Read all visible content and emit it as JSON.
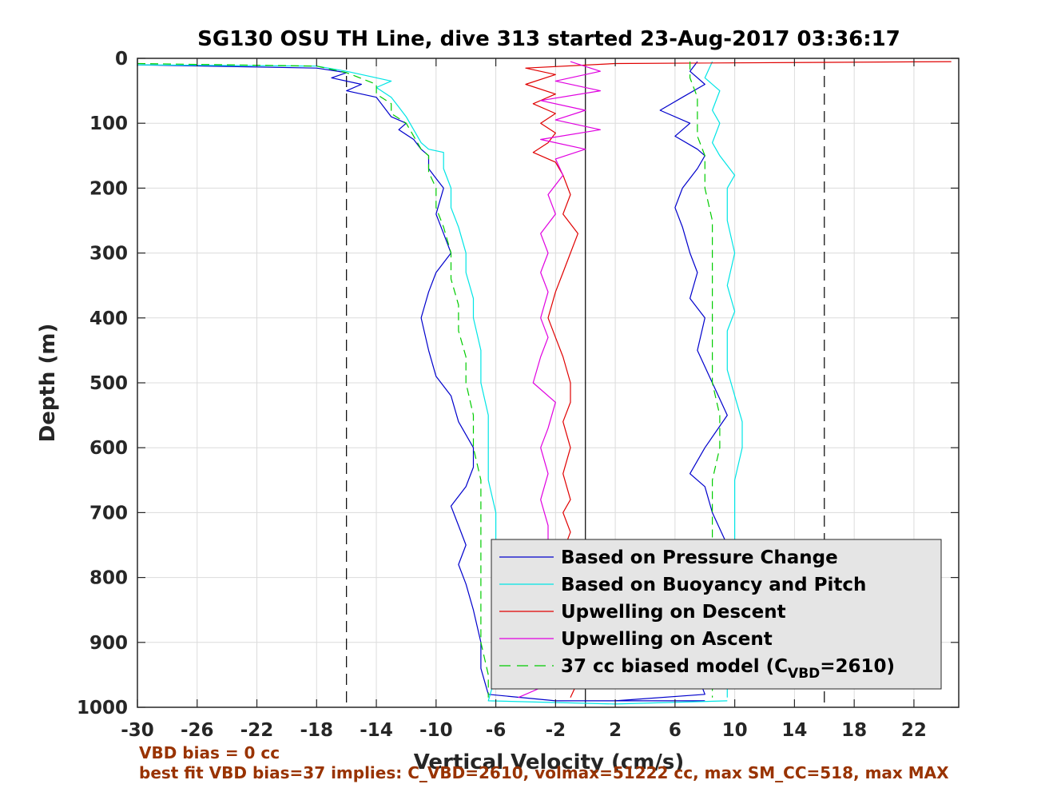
{
  "colors": {
    "pressure": "#0000cc",
    "buoyancy": "#00e5e5",
    "descent": "#e00000",
    "ascent": "#e000e0",
    "model": "#00cc00",
    "footnote": "#993300",
    "legend_bg": "#e5e5e5"
  },
  "footnotes": [
    "VBD bias = 0 cc",
    "best fit VBD bias=37 implies: C_VBD=2610, volmax=51222 cc, max SM_CC=518, max MAX"
  ],
  "chart_data": {
    "type": "line",
    "title": "SG130 OSU TH Line, dive 313 started 23-Aug-2017 03:36:17",
    "xlabel": "Vertical Velocity (cm/s)",
    "ylabel": "Depth (m)",
    "xlim": [
      -30,
      25
    ],
    "ylim": [
      0,
      1000
    ],
    "y_reversed": true,
    "grid": true,
    "xticks": [
      -30,
      -26,
      -22,
      -18,
      -14,
      -10,
      -6,
      -2,
      2,
      6,
      10,
      14,
      18,
      22
    ],
    "yticks": [
      0,
      100,
      200,
      300,
      400,
      500,
      600,
      700,
      800,
      900,
      1000
    ],
    "reference_lines": [
      {
        "x": -16,
        "style": "dashed"
      },
      {
        "x": 0,
        "style": "solid"
      },
      {
        "x": 16,
        "style": "dashed"
      }
    ],
    "legend_position": "bottom-right",
    "series": [
      {
        "name": "Based on Pressure Change",
        "key": "pressure",
        "style": "solid",
        "segments": [
          [
            [
              -30,
              10
            ],
            [
              -18,
              15
            ],
            [
              -16,
              22
            ],
            [
              -17,
              30
            ],
            [
              -15,
              40
            ],
            [
              -16,
              50
            ],
            [
              -14,
              60
            ],
            [
              -13.5,
              75
            ],
            [
              -13,
              90
            ],
            [
              -12,
              100
            ],
            [
              -12.5,
              110
            ],
            [
              -11.5,
              125
            ],
            [
              -11,
              140
            ],
            [
              -10.5,
              150
            ],
            [
              -10.5,
              170
            ],
            [
              -10,
              185
            ],
            [
              -9.5,
              200
            ],
            [
              -10,
              240
            ],
            [
              -9.5,
              270
            ],
            [
              -9,
              300
            ],
            [
              -10,
              330
            ],
            [
              -10.5,
              360
            ],
            [
              -11,
              400
            ],
            [
              -10.5,
              450
            ],
            [
              -10,
              490
            ],
            [
              -9,
              520
            ],
            [
              -8.5,
              560
            ],
            [
              -7.5,
              600
            ],
            [
              -7.5,
              630
            ],
            [
              -8,
              660
            ],
            [
              -9,
              690
            ],
            [
              -8.5,
              720
            ],
            [
              -8,
              750
            ],
            [
              -8.5,
              780
            ],
            [
              -8,
              810
            ],
            [
              -7.5,
              850
            ],
            [
              -7,
              900
            ],
            [
              -7,
              940
            ],
            [
              -6.5,
              980
            ],
            [
              -2,
              990
            ],
            [
              8,
              990
            ]
          ],
          [
            [
              7.5,
              5
            ],
            [
              7,
              20
            ],
            [
              8,
              40
            ],
            [
              6.5,
              60
            ],
            [
              5,
              80
            ],
            [
              7,
              100
            ],
            [
              6,
              120
            ],
            [
              7.5,
              140
            ],
            [
              8,
              150
            ],
            [
              7.5,
              170
            ],
            [
              6.5,
              200
            ],
            [
              6,
              230
            ],
            [
              6.5,
              260
            ],
            [
              7,
              300
            ],
            [
              7.5,
              330
            ],
            [
              7,
              370
            ],
            [
              8,
              400
            ],
            [
              7.5,
              450
            ],
            [
              8.5,
              500
            ],
            [
              9.5,
              550
            ],
            [
              8,
              600
            ],
            [
              7,
              640
            ],
            [
              8,
              660
            ],
            [
              8.5,
              700
            ],
            [
              9.5,
              750
            ],
            [
              8.5,
              800
            ],
            [
              8,
              850
            ],
            [
              8,
              900
            ],
            [
              7.5,
              950
            ],
            [
              8,
              980
            ],
            [
              2,
              990
            ]
          ]
        ]
      },
      {
        "name": "Based on Buoyancy and Pitch",
        "key": "buoyancy",
        "style": "solid",
        "segments": [
          [
            [
              -30,
              10
            ],
            [
              -18,
              12
            ],
            [
              -16,
              20
            ],
            [
              -13,
              35
            ],
            [
              -14,
              45
            ],
            [
              -13,
              60
            ],
            [
              -12.5,
              75
            ],
            [
              -12,
              90
            ],
            [
              -11.5,
              110
            ],
            [
              -11,
              130
            ],
            [
              -10.5,
              140
            ],
            [
              -9.5,
              145
            ],
            [
              -9.5,
              170
            ],
            [
              -9,
              200
            ],
            [
              -9,
              230
            ],
            [
              -8.5,
              260
            ],
            [
              -8,
              300
            ],
            [
              -8,
              330
            ],
            [
              -7.5,
              370
            ],
            [
              -7.5,
              400
            ],
            [
              -7,
              450
            ],
            [
              -7,
              500
            ],
            [
              -6.5,
              550
            ],
            [
              -6.5,
              600
            ],
            [
              -6.5,
              650
            ],
            [
              -6,
              700
            ],
            [
              -6,
              750
            ],
            [
              -6,
              800
            ],
            [
              -6,
              850
            ],
            [
              -6,
              900
            ],
            [
              -6,
              950
            ],
            [
              -6.5,
              990
            ],
            [
              2,
              995
            ],
            [
              9.5,
              990
            ]
          ],
          [
            [
              8.5,
              5
            ],
            [
              8,
              30
            ],
            [
              9,
              50
            ],
            [
              8.5,
              80
            ],
            [
              9,
              100
            ],
            [
              8.5,
              130
            ],
            [
              9,
              150
            ],
            [
              10,
              180
            ],
            [
              9.5,
              200
            ],
            [
              9.5,
              250
            ],
            [
              10,
              300
            ],
            [
              9.5,
              350
            ],
            [
              10,
              390
            ],
            [
              9.5,
              420
            ],
            [
              9.5,
              480
            ],
            [
              10,
              520
            ],
            [
              10.5,
              560
            ],
            [
              10.5,
              600
            ],
            [
              10,
              650
            ],
            [
              10,
              700
            ],
            [
              10,
              750
            ],
            [
              10,
              800
            ],
            [
              9.5,
              850
            ],
            [
              9.5,
              900
            ],
            [
              9.5,
              950
            ],
            [
              9.5,
              985
            ]
          ]
        ]
      },
      {
        "name": "Upwelling on Descent",
        "key": "descent",
        "style": "solid",
        "segments": [
          [
            [
              24.5,
              5
            ],
            [
              2,
              8
            ],
            [
              -4,
              15
            ],
            [
              -2,
              25
            ],
            [
              -4,
              40
            ],
            [
              -2,
              55
            ],
            [
              -3.5,
              70
            ],
            [
              -2,
              85
            ],
            [
              -3,
              100
            ],
            [
              -2,
              115
            ],
            [
              -2.5,
              130
            ],
            [
              -3.5,
              145
            ],
            [
              -2,
              160
            ],
            [
              -1.5,
              180
            ],
            [
              -1,
              210
            ],
            [
              -1.5,
              240
            ],
            [
              -0.5,
              270
            ],
            [
              -1,
              300
            ],
            [
              -1.5,
              330
            ],
            [
              -2,
              360
            ],
            [
              -2.5,
              400
            ],
            [
              -2,
              430
            ],
            [
              -1.5,
              460
            ],
            [
              -1,
              500
            ],
            [
              -1,
              530
            ],
            [
              -1.5,
              560
            ],
            [
              -1,
              600
            ],
            [
              -1.5,
              640
            ],
            [
              -1,
              680
            ],
            [
              -1.5,
              700
            ],
            [
              -1,
              730
            ],
            [
              -1.5,
              760
            ],
            [
              -1,
              790
            ],
            [
              -0.5,
              820
            ],
            [
              -1,
              850
            ],
            [
              -0.5,
              880
            ],
            [
              -1,
              920
            ],
            [
              -0.5,
              960
            ],
            [
              -1,
              985
            ]
          ]
        ]
      },
      {
        "name": "Upwelling on Ascent",
        "key": "ascent",
        "style": "solid",
        "segments": [
          [
            [
              -1,
              5
            ],
            [
              1,
              20
            ],
            [
              -2,
              35
            ],
            [
              1,
              50
            ],
            [
              -3,
              65
            ],
            [
              0,
              80
            ],
            [
              -2,
              95
            ],
            [
              1,
              110
            ],
            [
              -3,
              125
            ],
            [
              0,
              140
            ],
            [
              -2,
              155
            ],
            [
              -1.5,
              180
            ],
            [
              -2.5,
              210
            ],
            [
              -2,
              240
            ],
            [
              -3,
              270
            ],
            [
              -2.5,
              300
            ],
            [
              -3,
              330
            ],
            [
              -2.5,
              360
            ],
            [
              -3,
              400
            ],
            [
              -2.5,
              430
            ],
            [
              -3,
              460
            ],
            [
              -3.5,
              500
            ],
            [
              -2,
              530
            ],
            [
              -2.5,
              570
            ],
            [
              -3,
              600
            ],
            [
              -2.5,
              640
            ],
            [
              -3,
              680
            ],
            [
              -2.5,
              720
            ],
            [
              -2.5,
              760
            ],
            [
              -3,
              800
            ],
            [
              -2.5,
              840
            ],
            [
              -2,
              880
            ],
            [
              -2.5,
              920
            ],
            [
              -2,
              960
            ],
            [
              -4.5,
              985
            ]
          ]
        ]
      },
      {
        "name": "37 cc biased model (C_VBD=2610)",
        "key": "model",
        "style": "dashed",
        "segments": [
          [
            [
              -30,
              8
            ],
            [
              -18,
              12
            ],
            [
              -16,
              22
            ],
            [
              -14,
              40
            ],
            [
              -14,
              55
            ],
            [
              -13,
              70
            ],
            [
              -13,
              85
            ],
            [
              -12,
              100
            ],
            [
              -11.5,
              120
            ],
            [
              -11,
              140
            ],
            [
              -10.5,
              150
            ],
            [
              -10.5,
              175
            ],
            [
              -10,
              200
            ],
            [
              -10,
              230
            ],
            [
              -9.5,
              260
            ],
            [
              -9,
              300
            ],
            [
              -9,
              340
            ],
            [
              -8.5,
              380
            ],
            [
              -8.5,
              420
            ],
            [
              -8,
              460
            ],
            [
              -8,
              500
            ],
            [
              -7.5,
              550
            ],
            [
              -7.5,
              600
            ],
            [
              -7,
              650
            ],
            [
              -7,
              700
            ],
            [
              -7,
              750
            ],
            [
              -7,
              800
            ],
            [
              -7,
              850
            ],
            [
              -7,
              900
            ],
            [
              -6.5,
              950
            ],
            [
              -6.5,
              985
            ]
          ],
          [
            [
              7,
              5
            ],
            [
              7,
              30
            ],
            [
              7.5,
              60
            ],
            [
              7.5,
              90
            ],
            [
              7.5,
              120
            ],
            [
              8,
              150
            ],
            [
              8,
              200
            ],
            [
              8.5,
              250
            ],
            [
              8.5,
              300
            ],
            [
              8.5,
              350
            ],
            [
              8.5,
              400
            ],
            [
              8.5,
              450
            ],
            [
              8.5,
              500
            ],
            [
              9,
              550
            ],
            [
              9,
              600
            ],
            [
              8.5,
              650
            ],
            [
              8.5,
              700
            ],
            [
              8.5,
              750
            ],
            [
              8.5,
              800
            ],
            [
              8.5,
              850
            ],
            [
              8.5,
              900
            ],
            [
              8.5,
              950
            ],
            [
              8.5,
              985
            ]
          ]
        ]
      }
    ]
  }
}
